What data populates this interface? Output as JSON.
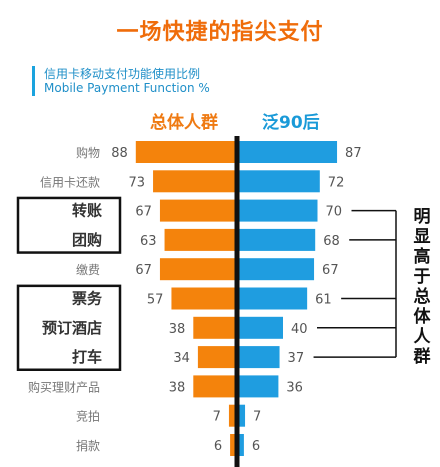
{
  "title": "一场快捷的指尖支付",
  "subtitle_cn": "信用卡移动支付功能使用比例",
  "subtitle_en": "Mobile Payment Function %",
  "side_note": "明显高于总体人群",
  "chart_data": {
    "type": "bar",
    "orientation": "horizontal-diverging",
    "categories": [
      "购物",
      "信用卡还款",
      "转账",
      "团购",
      "缴费",
      "票务",
      "预订酒店",
      "打车",
      "购买理财产品",
      "竞拍",
      "捐款"
    ],
    "series": [
      {
        "name": "总体人群",
        "color": "#f4830c",
        "values": [
          88,
          73,
          67,
          63,
          67,
          57,
          38,
          34,
          38,
          7,
          6
        ]
      },
      {
        "name": "泛90后",
        "color": "#1f9de0",
        "values": [
          87,
          72,
          70,
          68,
          67,
          61,
          40,
          37,
          36,
          7,
          6
        ]
      }
    ],
    "highlighted_categories": [
      "转账",
      "团购",
      "票务",
      "预订酒店",
      "打车"
    ],
    "xlim": [
      0,
      100
    ]
  }
}
